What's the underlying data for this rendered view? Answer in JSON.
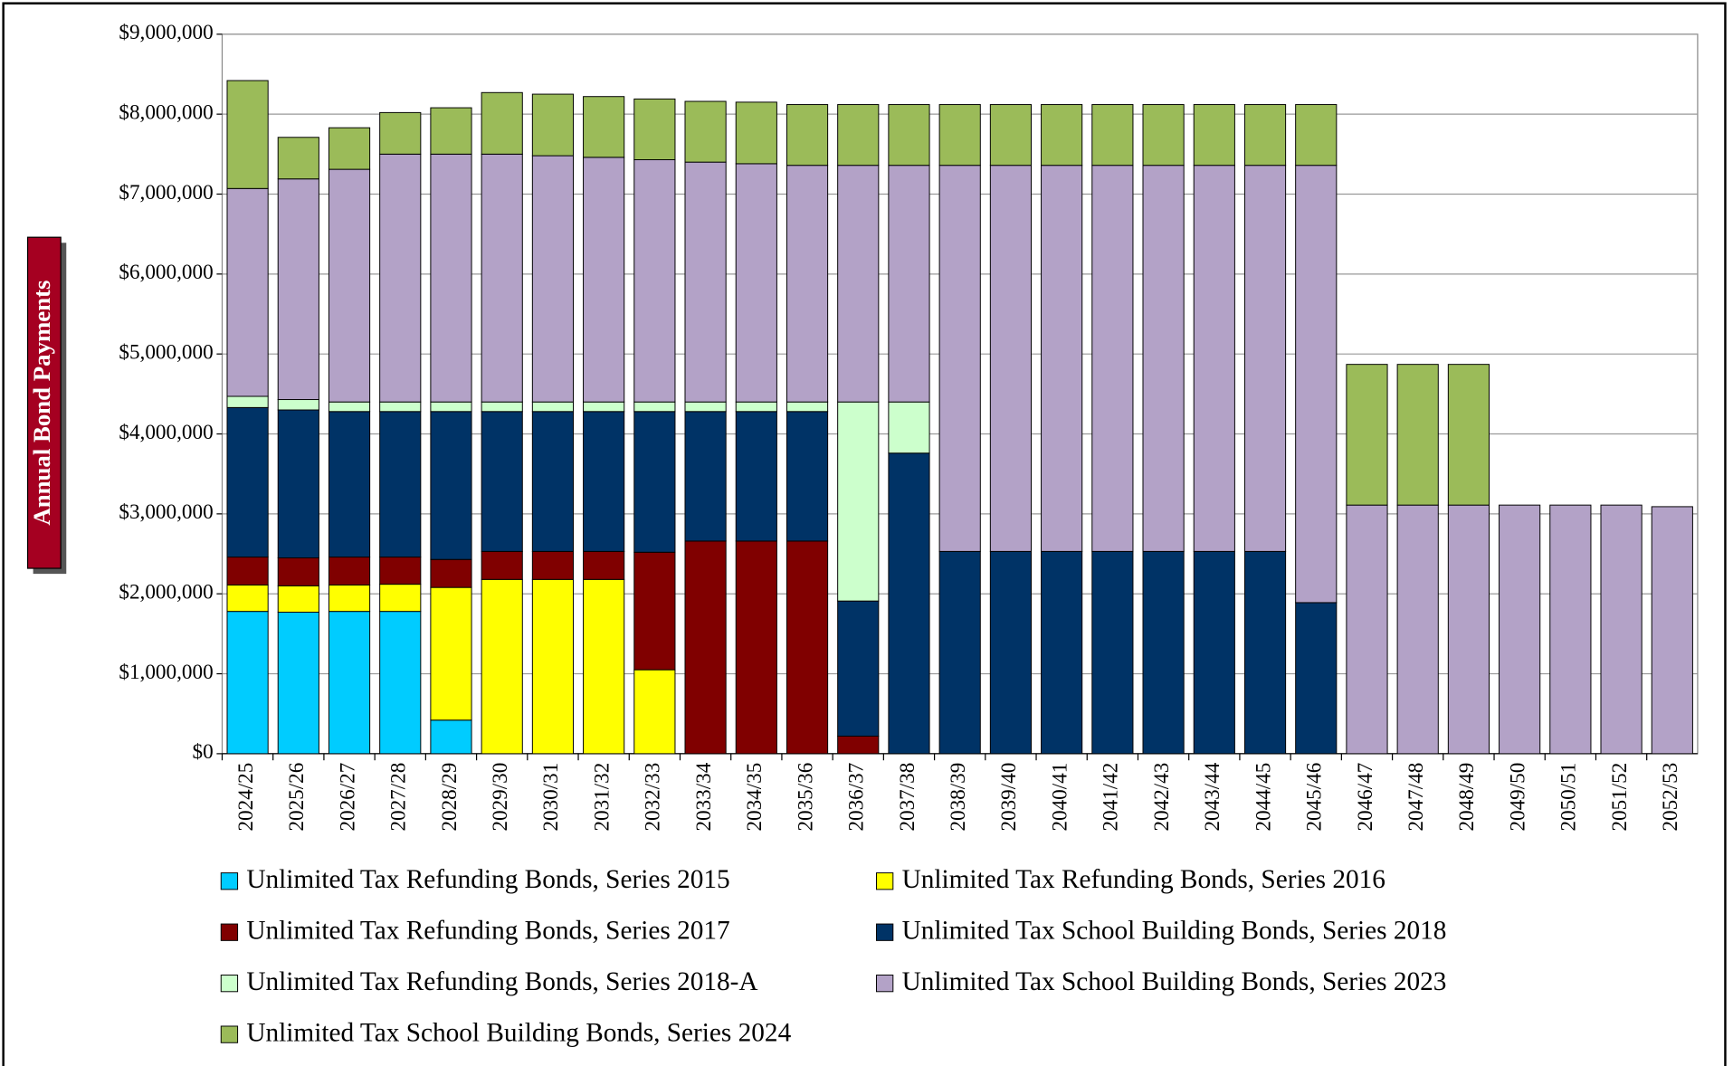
{
  "chart_data": {
    "type": "stacked_bar",
    "y_label": "Annual Bond Payments",
    "categories": [
      "2024/25",
      "2025/26",
      "2026/27",
      "2027/28",
      "2028/29",
      "2029/30",
      "2030/31",
      "2031/32",
      "2032/33",
      "2033/34",
      "2034/35",
      "2035/36",
      "2036/37",
      "2037/38",
      "2038/39",
      "2039/40",
      "2040/41",
      "2041/42",
      "2042/43",
      "2043/44",
      "2044/45",
      "2045/46",
      "2046/47",
      "2047/48",
      "2048/49",
      "2049/50",
      "2050/51",
      "2051/52",
      "2052/53"
    ],
    "series": [
      {
        "name": "Unlimited Tax Refunding Bonds, Series 2015",
        "color": "#00ccff",
        "values": [
          1780000,
          1770000,
          1780000,
          1780000,
          420000,
          0,
          0,
          0,
          0,
          0,
          0,
          0,
          0,
          0,
          0,
          0,
          0,
          0,
          0,
          0,
          0,
          0,
          0,
          0,
          0,
          0,
          0,
          0,
          0
        ]
      },
      {
        "name": "Unlimited Tax Refunding Bonds, Series 2016",
        "color": "#ffff00",
        "values": [
          330000,
          330000,
          330000,
          340000,
          1660000,
          2180000,
          2180000,
          2180000,
          1050000,
          0,
          0,
          0,
          0,
          0,
          0,
          0,
          0,
          0,
          0,
          0,
          0,
          0,
          0,
          0,
          0,
          0,
          0,
          0,
          0
        ]
      },
      {
        "name": "Unlimited Tax Refunding Bonds, Series 2017",
        "color": "#800000",
        "values": [
          350000,
          350000,
          350000,
          340000,
          350000,
          350000,
          350000,
          350000,
          1470000,
          2660000,
          2660000,
          2660000,
          220000,
          0,
          0,
          0,
          0,
          0,
          0,
          0,
          0,
          0,
          0,
          0,
          0,
          0,
          0,
          0,
          0
        ]
      },
      {
        "name": "Unlimited Tax School Building Bonds, Series 2018",
        "color": "#003366",
        "values": [
          1870000,
          1850000,
          1820000,
          1820000,
          1850000,
          1750000,
          1750000,
          1750000,
          1760000,
          1620000,
          1620000,
          1620000,
          1690000,
          3760000,
          2530000,
          2530000,
          2530000,
          2530000,
          2530000,
          2530000,
          2530000,
          1890000,
          0,
          0,
          0,
          0,
          0,
          0,
          0
        ]
      },
      {
        "name": "Unlimited Tax Refunding Bonds, Series 2018-A",
        "color": "#ccffcc",
        "values": [
          140000,
          130000,
          120000,
          120000,
          120000,
          120000,
          120000,
          120000,
          120000,
          120000,
          120000,
          120000,
          2490000,
          640000,
          0,
          0,
          0,
          0,
          0,
          0,
          0,
          0,
          0,
          0,
          0,
          0,
          0,
          0,
          0
        ]
      },
      {
        "name": "Unlimited Tax School Building Bonds, Series 2023",
        "color": "#b3a2c7",
        "values": [
          2600000,
          2760000,
          2910000,
          3100000,
          3100000,
          3100000,
          3080000,
          3060000,
          3030000,
          3000000,
          2980000,
          2960000,
          2960000,
          2960000,
          4830000,
          4830000,
          4830000,
          4830000,
          4830000,
          4830000,
          4830000,
          5470000,
          3110000,
          3110000,
          3110000,
          3110000,
          3110000,
          3110000,
          3090000
        ]
      },
      {
        "name": "Unlimited Tax School Building Bonds, Series 2024",
        "color": "#9bbb59",
        "values": [
          1350000,
          520000,
          520000,
          520000,
          580000,
          770000,
          770000,
          760000,
          760000,
          760000,
          770000,
          760000,
          760000,
          760000,
          760000,
          760000,
          760000,
          760000,
          760000,
          760000,
          760000,
          760000,
          1760000,
          1760000,
          1760000,
          0,
          0,
          0,
          0
        ]
      }
    ],
    "ylim": [
      0,
      9000000
    ],
    "yticks": [
      {
        "value": 0,
        "label": "$0"
      },
      {
        "value": 1000000,
        "label": "$1,000,000"
      },
      {
        "value": 2000000,
        "label": "$2,000,000"
      },
      {
        "value": 3000000,
        "label": "$3,000,000"
      },
      {
        "value": 4000000,
        "label": "$4,000,000"
      },
      {
        "value": 5000000,
        "label": "$5,000,000"
      },
      {
        "value": 6000000,
        "label": "$6,000,000"
      },
      {
        "value": 7000000,
        "label": "$7,000,000"
      },
      {
        "value": 8000000,
        "label": "$8,000,000"
      },
      {
        "value": 9000000,
        "label": "$9,000,000"
      }
    ],
    "grid": true
  }
}
